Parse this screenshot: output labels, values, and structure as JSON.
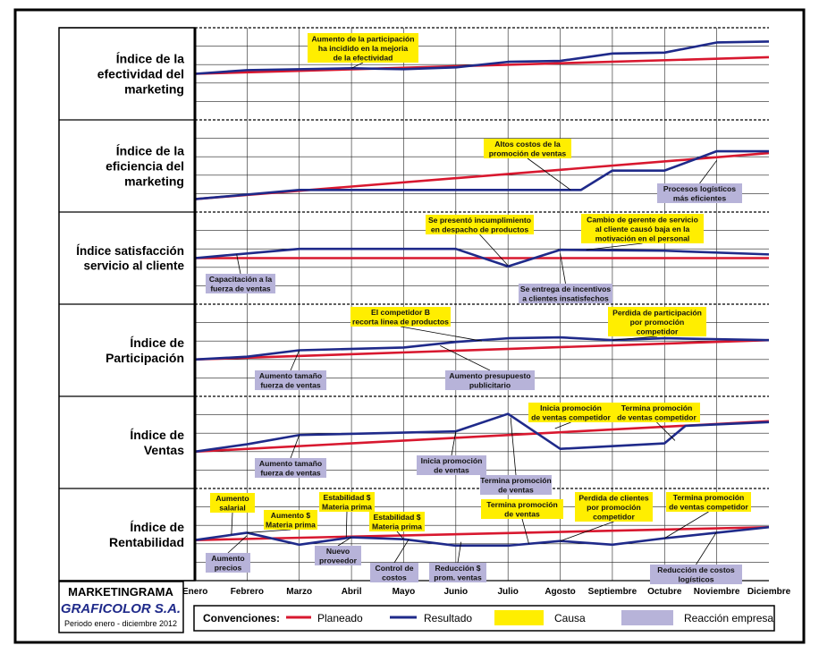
{
  "colors": {
    "planned": "#d8182f",
    "actual": "#1f2a8a",
    "cause": "#ffee00",
    "reaction": "#b7b3d9",
    "grid": "#222222",
    "frame": "#000000",
    "brand": "#1f2a8a"
  },
  "title_block": {
    "title": "MARKETINGRAMA",
    "company": "GRAFICOLOR S.A.",
    "period": "Periodo enero - diciembre 2012"
  },
  "months": [
    "Enero",
    "Febrero",
    "Marzo",
    "Abril",
    "Mayo",
    "Junio",
    "Julio",
    "Agosto",
    "Septiembre",
    "Octubre",
    "Noviembre",
    "Diciembre"
  ],
  "legend": {
    "title": "Convenciones:",
    "planned": "Planeado",
    "actual": "Resultado",
    "cause": "Causa",
    "reaction": "Reacción empresa"
  },
  "chart_data": {
    "type": "line",
    "x": [
      "Enero",
      "Febrero",
      "Marzo",
      "Abril",
      "Mayo",
      "Junio",
      "Julio",
      "Agosto",
      "Septiembre",
      "Octubre",
      "Noviembre",
      "Diciembre"
    ],
    "scale": "relative index level, 0 = panel bottom, 10 = panel top",
    "panels": [
      {
        "label": [
          "Índice de la",
          "efectividad del",
          "marketing"
        ],
        "planned": [
          {
            "x": 0,
            "y": 5.0
          },
          {
            "x": 11,
            "y": 6.8
          }
        ],
        "actual": [
          {
            "x": 0,
            "y": 5.0
          },
          {
            "x": 1,
            "y": 5.4
          },
          {
            "x": 3,
            "y": 5.6
          },
          {
            "x": 4,
            "y": 5.5
          },
          {
            "x": 5,
            "y": 5.7
          },
          {
            "x": 6,
            "y": 6.3
          },
          {
            "x": 7,
            "y": 6.4
          },
          {
            "x": 8,
            "y": 7.2
          },
          {
            "x": 9,
            "y": 7.3
          },
          {
            "x": 10,
            "y": 8.4
          },
          {
            "x": 11,
            "y": 8.5
          }
        ],
        "notes": [
          {
            "kind": "cause",
            "text": [
              "Aumento de la participación",
              "ha incidido en la mejoria",
              "de la efectividad"
            ],
            "target": {
              "x": 3,
              "y": 5.6
            }
          }
        ]
      },
      {
        "label": [
          "Índice de la",
          "eficiencia del",
          "marketing"
        ],
        "planned": [
          {
            "x": 0,
            "y": 1.4
          },
          {
            "x": 11,
            "y": 6.4
          }
        ],
        "actual": [
          {
            "x": 0,
            "y": 1.4
          },
          {
            "x": 2,
            "y": 2.4
          },
          {
            "x": 5,
            "y": 2.4
          },
          {
            "x": 7.4,
            "y": 2.4
          },
          {
            "x": 8,
            "y": 4.5
          },
          {
            "x": 9,
            "y": 4.5
          },
          {
            "x": 10,
            "y": 6.6
          },
          {
            "x": 11,
            "y": 6.6
          }
        ],
        "notes": [
          {
            "kind": "cause",
            "text": [
              "Altos costos de la",
              "promoción de ventas"
            ],
            "target": {
              "x": 7.2,
              "y": 2.4
            }
          },
          {
            "kind": "reaction",
            "text": [
              "Procesos logísticos",
              "más eficientes"
            ],
            "target": {
              "x": 10,
              "y": 5.6
            }
          }
        ]
      },
      {
        "label": [
          "Índice satisfacción",
          "servicio al cliente"
        ],
        "planned": [
          {
            "x": 0,
            "y": 5.0
          },
          {
            "x": 11,
            "y": 5.0
          }
        ],
        "actual": [
          {
            "x": 0,
            "y": 5.0
          },
          {
            "x": 2,
            "y": 6.0
          },
          {
            "x": 5,
            "y": 6.0
          },
          {
            "x": 6,
            "y": 4.1
          },
          {
            "x": 7,
            "y": 5.9
          },
          {
            "x": 9,
            "y": 5.8
          },
          {
            "x": 11,
            "y": 5.4
          }
        ],
        "notes": [
          {
            "kind": "cause",
            "text": [
              "Se presentó incumplimiento",
              "en despacho de productos"
            ],
            "target": {
              "x": 6,
              "y": 4.2
            }
          },
          {
            "kind": "cause",
            "text": [
              "Cambio de gerente de servicio",
              "al cliente causó baja en la",
              "motivación en el personal"
            ],
            "target": {
              "x": 7.5,
              "y": 5.9
            }
          },
          {
            "kind": "reaction",
            "text": [
              "Capacitación a la",
              "fuerza de ventas"
            ],
            "target": {
              "x": 0.8,
              "y": 5.4
            }
          },
          {
            "kind": "reaction",
            "text": [
              "Se entrega de incentivos",
              "a clientes insatisfechos"
            ],
            "target": {
              "x": 7,
              "y": 5.5
            }
          }
        ]
      },
      {
        "label": [
          "Índice de",
          "Participación"
        ],
        "planned": [
          {
            "x": 0,
            "y": 4.0
          },
          {
            "x": 11,
            "y": 6.1
          }
        ],
        "actual": [
          {
            "x": 0,
            "y": 4.0
          },
          {
            "x": 1,
            "y": 4.3
          },
          {
            "x": 2,
            "y": 5.0
          },
          {
            "x": 4,
            "y": 5.3
          },
          {
            "x": 5,
            "y": 5.9
          },
          {
            "x": 6,
            "y": 6.3
          },
          {
            "x": 7,
            "y": 6.4
          },
          {
            "x": 8,
            "y": 6.1
          },
          {
            "x": 9,
            "y": 6.3
          },
          {
            "x": 11,
            "y": 6.1
          }
        ],
        "notes": [
          {
            "kind": "cause",
            "text": [
              "El competidor B",
              "recorta linea de productos"
            ],
            "target": {
              "x": 5.5,
              "y": 6.0
            }
          },
          {
            "kind": "cause",
            "text": [
              "Perdida de participación",
              "por promoción",
              "competidor"
            ],
            "target": {
              "x": 8,
              "y": 6.1
            }
          },
          {
            "kind": "reaction",
            "text": [
              "Aumento tamaño",
              "fuerza de ventas"
            ],
            "target": {
              "x": 2,
              "y": 5.0
            }
          },
          {
            "kind": "reaction",
            "text": [
              "Aumento presupuesto",
              "publicitario"
            ],
            "target": {
              "x": 4.7,
              "y": 5.5
            }
          }
        ]
      },
      {
        "label": [
          "Índice de",
          "Ventas"
        ],
        "planned": [
          {
            "x": 0,
            "y": 4.0
          },
          {
            "x": 11,
            "y": 7.3
          }
        ],
        "actual": [
          {
            "x": 0,
            "y": 4.0
          },
          {
            "x": 1,
            "y": 4.8
          },
          {
            "x": 2,
            "y": 5.8
          },
          {
            "x": 5,
            "y": 6.2
          },
          {
            "x": 6,
            "y": 8.1
          },
          {
            "x": 7,
            "y": 4.3
          },
          {
            "x": 9,
            "y": 4.9
          },
          {
            "x": 9.4,
            "y": 6.8
          },
          {
            "x": 11,
            "y": 7.2
          }
        ],
        "notes": [
          {
            "kind": "cause",
            "text": [
              "Inicia promoción",
              "de ventas competidor"
            ],
            "target": {
              "x": 6.9,
              "y": 6.5
            }
          },
          {
            "kind": "cause",
            "text": [
              "Termina promoción",
              "de ventas competidor"
            ],
            "target": {
              "x": 9.2,
              "y": 5.2
            }
          },
          {
            "kind": "reaction",
            "text": [
              "Aumento tamaño",
              "fuerza de ventas"
            ],
            "target": {
              "x": 2,
              "y": 5.8
            }
          },
          {
            "kind": "reaction",
            "text": [
              "Inicia promoción",
              "de ventas"
            ],
            "target": {
              "x": 5,
              "y": 6.2
            }
          },
          {
            "kind": "reaction",
            "text": [
              "Termina promoción",
              "de ventas"
            ],
            "target": {
              "x": 6.05,
              "y": 7.7
            }
          }
        ]
      },
      {
        "label": [
          "Índice de",
          "Rentabilidad"
        ],
        "planned": [
          {
            "x": 0,
            "y": 4.4
          },
          {
            "x": 11,
            "y": 5.8
          }
        ],
        "actual": [
          {
            "x": 0,
            "y": 4.4
          },
          {
            "x": 1,
            "y": 5.2
          },
          {
            "x": 2,
            "y": 3.9
          },
          {
            "x": 3,
            "y": 4.7
          },
          {
            "x": 4,
            "y": 4.5
          },
          {
            "x": 5,
            "y": 3.8
          },
          {
            "x": 6,
            "y": 3.8
          },
          {
            "x": 7,
            "y": 4.3
          },
          {
            "x": 8,
            "y": 3.9
          },
          {
            "x": 9,
            "y": 4.6
          },
          {
            "x": 10,
            "y": 5.2
          },
          {
            "x": 11,
            "y": 5.8
          }
        ],
        "notes": [
          {
            "kind": "cause",
            "text": [
              "Aumento",
              "salarial"
            ],
            "target": {
              "x": 0.7,
              "y": 5.0
            }
          },
          {
            "kind": "cause",
            "text": [
              "Aumento $",
              "Materia prima"
            ],
            "target": {
              "x": 1,
              "y": 5.2
            }
          },
          {
            "kind": "cause",
            "text": [
              "Estabilidad $",
              "Materia prima"
            ],
            "target": {
              "x": 2.9,
              "y": 4.7
            }
          },
          {
            "kind": "cause",
            "text": [
              "Estabilidad $",
              "Materia prima"
            ],
            "target": {
              "x": 4,
              "y": 4.5
            }
          },
          {
            "kind": "cause",
            "text": [
              "Termina promoción",
              "de ventas"
            ],
            "target": {
              "x": 6.4,
              "y": 4.0
            }
          },
          {
            "kind": "cause",
            "text": [
              "Perdida de clientes",
              "por promoción",
              "competidor"
            ],
            "target": {
              "x": 7,
              "y": 4.3
            }
          },
          {
            "kind": "cause",
            "text": [
              "Termina promoción",
              "de ventas competidor"
            ],
            "target": {
              "x": 9,
              "y": 4.6
            }
          },
          {
            "kind": "reaction",
            "text": [
              "Aumento",
              "precios"
            ],
            "target": {
              "x": 1,
              "y": 4.9
            }
          },
          {
            "kind": "reaction",
            "text": [
              "Nuevo",
              "proveedor"
            ],
            "target": {
              "x": 3,
              "y": 4.7
            }
          },
          {
            "kind": "reaction",
            "text": [
              "Control de",
              "costos"
            ],
            "target": {
              "x": 4.1,
              "y": 4.5
            }
          },
          {
            "kind": "reaction",
            "text": [
              "Reducción $",
              "prom. ventas"
            ],
            "target": {
              "x": 5.1,
              "y": 4.2
            }
          },
          {
            "kind": "reaction",
            "text": [
              "Reducción de costos",
              "logísticos"
            ],
            "target": {
              "x": 10,
              "y": 5.3
            }
          }
        ]
      }
    ]
  }
}
